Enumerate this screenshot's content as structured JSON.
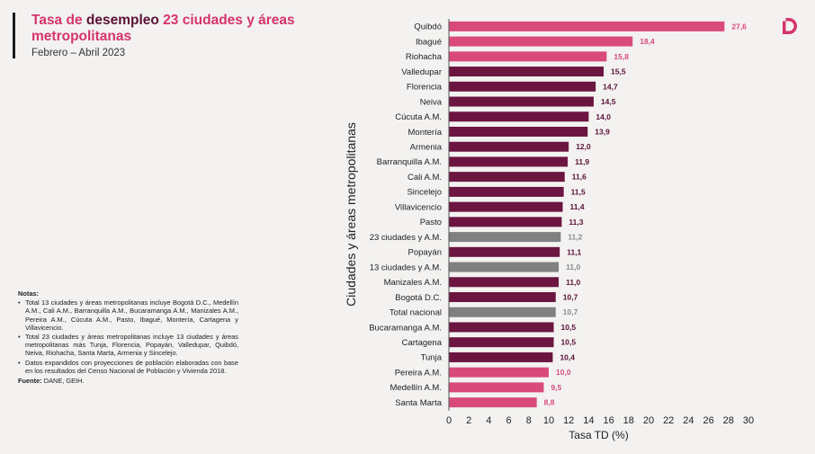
{
  "header": {
    "title_part1": "Tasa de ",
    "title_part2": "desempleo",
    "title_part3": " 23 ciudades y áreas metropolitanas",
    "subtitle": "Febrero – Abril 2023"
  },
  "notes": {
    "heading": "Notas",
    "items": [
      "Total 13 ciudades y áreas metropolitanas incluye Bogotá D.C., Medellín A.M., Cali A.M., Barranquilla A.M., Bucaramanga A.M., Manizales A.M., Pereira A.M., Cúcuta A.M., Pasto, Ibagué, Montería, Cartagena y Villavicencio.",
      "Total 23 ciudades y áreas metropolitanas incluye 13 ciudades y áreas metropolitanas más Tunja, Florencia, Popayán, Valledupar, Quibdó, Neiva, Riohacha, Santa Marta, Armenia y Sincelejo.",
      "Datos expandidos con proyecciones de población elaboradas con base en los resultados del Censo Nacional de Población y Vivienda 2018."
    ],
    "source_label": "Fuente:",
    "source_value": " DANE, GEIH."
  },
  "logo": {
    "icon": "dane-logo-icon",
    "color": "#d6336c"
  },
  "colors": {
    "pink": "#d94a7b",
    "dark": "#6b1540",
    "gray": "#808080",
    "pink_label": "#d94a7b",
    "dark_label": "#5a1036",
    "gray_label": "#8a8a8a"
  },
  "chart_data": {
    "type": "bar",
    "orientation": "horizontal",
    "title": "Tasa de desempleo 23 ciudades y áreas metropolitanas",
    "subtitle": "Febrero – Abril 2023",
    "xlabel": "Tasa TD (%)",
    "ylabel": "Ciudades y áreas metropolitanas",
    "xlim": [
      0,
      30
    ],
    "xticks": [
      0,
      2,
      4,
      6,
      8,
      10,
      12,
      14,
      16,
      18,
      20,
      22,
      24,
      26,
      28,
      30
    ],
    "grid": false,
    "categories": [
      "Quibdó",
      "Ibagué",
      "Riohacha",
      "Valledupar",
      "Florencia",
      "Neiva",
      "Cúcuta A.M.",
      "Montería",
      "Armenia",
      "Barranquilla A.M.",
      "Cali A.M.",
      "Sincelejo",
      "Villavicencio",
      "Pasto",
      "23 ciudades y A.M.",
      "Popayán",
      "13 ciudades y A.M.",
      "Manizales A.M.",
      "Bogotá D.C.",
      "Total nacional",
      "Bucaramanga A.M.",
      "Cartagena",
      "Tunja",
      "Pereira A.M.",
      "Medellín A.M.",
      "Santa Marta"
    ],
    "values": [
      27.6,
      18.4,
      15.8,
      15.5,
      14.7,
      14.5,
      14.0,
      13.9,
      12.0,
      11.9,
      11.6,
      11.5,
      11.4,
      11.3,
      11.2,
      11.1,
      11.0,
      11.0,
      10.7,
      10.7,
      10.5,
      10.5,
      10.4,
      10.0,
      9.5,
      8.8
    ],
    "value_labels": [
      "27,6",
      "18,4",
      "15,8",
      "15,5",
      "14,7",
      "14,5",
      "14,0",
      "13,9",
      "12,0",
      "11,9",
      "11,6",
      "11,5",
      "11,4",
      "11,3",
      "11,2",
      "11,1",
      "11,0",
      "11,0",
      "10,7",
      "10,7",
      "10,5",
      "10,5",
      "10,4",
      "10,0",
      "9,5",
      "8,8"
    ],
    "groups": [
      "pink",
      "pink",
      "pink",
      "dark",
      "dark",
      "dark",
      "dark",
      "dark",
      "dark",
      "dark",
      "dark",
      "dark",
      "dark",
      "dark",
      "gray",
      "dark",
      "gray",
      "dark",
      "dark",
      "gray",
      "dark",
      "dark",
      "dark",
      "pink",
      "pink",
      "pink"
    ]
  }
}
